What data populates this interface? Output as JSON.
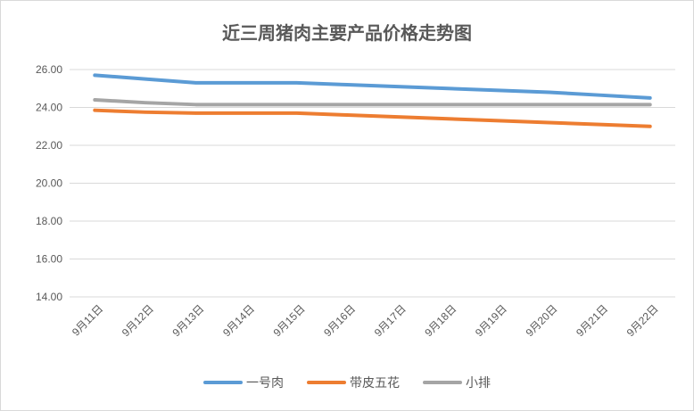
{
  "chart_data": {
    "type": "line",
    "title": "近三周猪肉主要产品价格走势图",
    "xlabel": "",
    "ylabel": "",
    "categories": [
      "9月11日",
      "9月12日",
      "9月13日",
      "9月14日",
      "9月15日",
      "9月16日",
      "9月17日",
      "9月18日",
      "9月19日",
      "9月20日",
      "9月21日",
      "9月22日"
    ],
    "ylim": [
      14,
      26
    ],
    "yticks": [
      "14.00",
      "16.00",
      "18.00",
      "20.00",
      "22.00",
      "24.00",
      "26.00"
    ],
    "grid": "horizontal",
    "legend_position": "bottom",
    "series": [
      {
        "name": "一号肉",
        "color": "#5b9bd5",
        "values": [
          25.7,
          25.5,
          25.3,
          25.3,
          25.3,
          25.2,
          25.1,
          25.0,
          24.9,
          24.8,
          24.65,
          24.5
        ]
      },
      {
        "name": "带皮五花",
        "color": "#ed7d31",
        "values": [
          23.85,
          23.75,
          23.7,
          23.7,
          23.7,
          23.6,
          23.5,
          23.4,
          23.3,
          23.2,
          23.1,
          23.0
        ]
      },
      {
        "name": "小排",
        "color": "#a5a5a5",
        "values": [
          24.4,
          24.25,
          24.15,
          24.15,
          24.15,
          24.15,
          24.15,
          24.15,
          24.15,
          24.15,
          24.15,
          24.15
        ]
      }
    ]
  }
}
